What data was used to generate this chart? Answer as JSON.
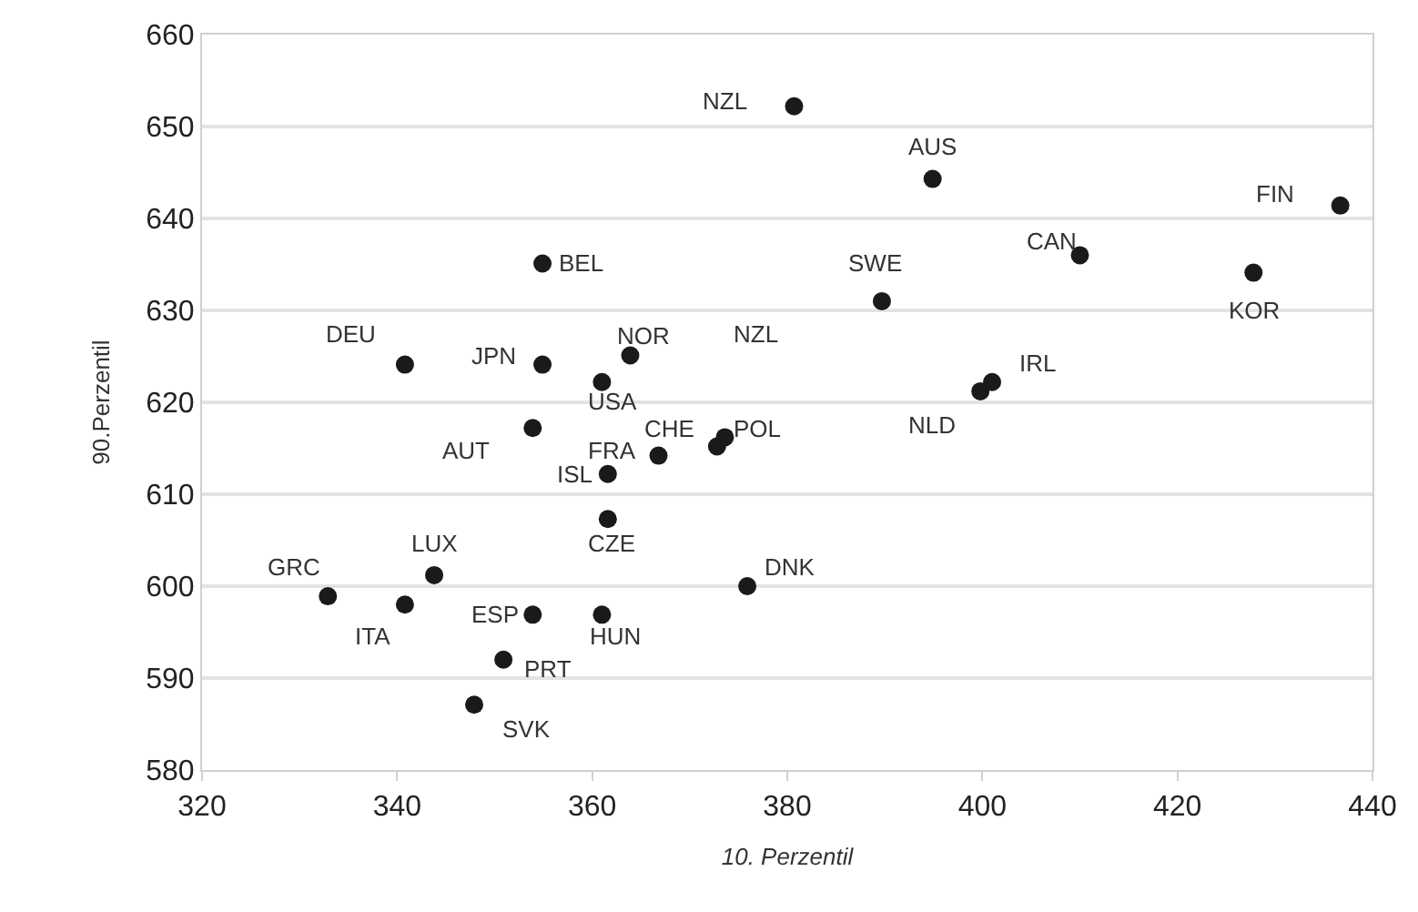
{
  "chart_data": {
    "type": "scatter",
    "xlabel": "10. Perzentil",
    "ylabel": "90.Perzentil",
    "x": [
      380.7,
      394.9,
      436.7,
      410.0,
      427.8,
      354.9,
      389.7,
      340.8,
      354.9,
      363.9,
      361.0,
      401.0,
      399.8,
      353.9,
      372.8,
      373.6,
      366.8,
      361.6,
      361.6,
      343.8,
      332.9,
      340.8,
      353.9,
      361.0,
      350.9,
      347.9,
      375.9
    ],
    "values": [
      652.2,
      644.3,
      641.4,
      636.0,
      634.1,
      635.1,
      631.0,
      624.1,
      624.1,
      625.1,
      622.2,
      622.2,
      621.2,
      617.2,
      615.2,
      616.2,
      614.2,
      612.2,
      607.3,
      601.2,
      598.9,
      598.0,
      596.9,
      596.9,
      592.0,
      587.1,
      600.0
    ],
    "color": "#1a1a1a",
    "marker": "circle",
    "xlim": [
      320,
      440
    ],
    "xticks": [
      320,
      340,
      360,
      380,
      400,
      420,
      440
    ],
    "ylim": [
      580,
      660
    ],
    "yticks": [
      580,
      590,
      600,
      610,
      620,
      630,
      640,
      650,
      660
    ],
    "grid": "y",
    "legend": false,
    "annotations": [
      {
        "text": "NZL",
        "x": 380.7,
        "y": 652.2
      },
      {
        "text": "AUS",
        "x": 394.9,
        "y": 644.3
      },
      {
        "text": "FIN",
        "x": 436.7,
        "y": 641.4
      },
      {
        "text": "CAN",
        "x": 410.0,
        "y": 636.0
      },
      {
        "text": "KOR",
        "x": 427.8,
        "y": 634.1
      },
      {
        "text": "BEL",
        "x": 354.9,
        "y": 635.1
      },
      {
        "text": "SWE",
        "x": 389.7,
        "y": 631.0
      },
      {
        "text": "DEU",
        "x": 340.8,
        "y": 624.1
      },
      {
        "text": "JPN",
        "x": 354.9,
        "y": 624.1
      },
      {
        "text": "NOR",
        "x": 363.9,
        "y": 625.1
      },
      {
        "text": "USA",
        "x": 361.0,
        "y": 622.2
      },
      {
        "text": "IRL",
        "x": 401.0,
        "y": 622.2
      },
      {
        "text": "NLD",
        "x": 399.8,
        "y": 621.2
      },
      {
        "text": "AUT",
        "x": 353.9,
        "y": 617.2
      },
      {
        "text": "CHE",
        "x": 372.8,
        "y": 615.2
      },
      {
        "text": "POL",
        "x": 373.6,
        "y": 616.2
      },
      {
        "text": "FRA",
        "x": 366.8,
        "y": 614.2
      },
      {
        "text": "ISL",
        "x": 361.6,
        "y": 612.2
      },
      {
        "text": "CZE",
        "x": 361.6,
        "y": 607.3
      },
      {
        "text": "LUX",
        "x": 343.8,
        "y": 601.2
      },
      {
        "text": "GRC",
        "x": 332.9,
        "y": 598.9
      },
      {
        "text": "ITA",
        "x": 340.8,
        "y": 598.0
      },
      {
        "text": "ESP",
        "x": 353.9,
        "y": 596.9
      },
      {
        "text": "HUN",
        "x": 361.0,
        "y": 596.9
      },
      {
        "text": "PRT",
        "x": 350.9,
        "y": 592.0
      },
      {
        "text": "SVK",
        "x": 347.9,
        "y": 587.1
      },
      {
        "text": "DNK",
        "x": 375.9,
        "y": 600.0
      },
      "NZL"
    ]
  }
}
